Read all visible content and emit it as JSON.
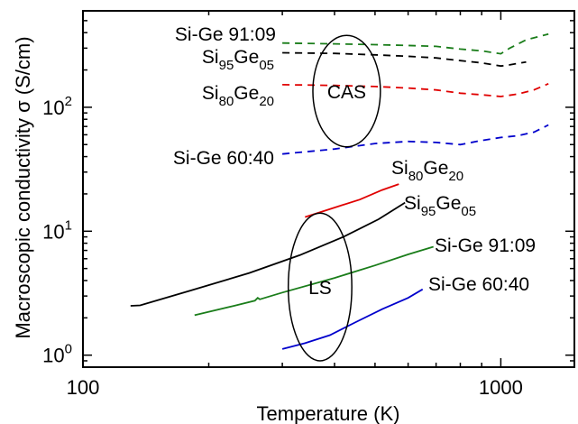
{
  "chart_data": {
    "type": "line",
    "title": "",
    "xlabel": "Temperature (K)",
    "ylabel": "Macroscopic conductivity σ (S/cm)",
    "xscale": "log",
    "yscale": "log",
    "xlim": [
      100,
      1500
    ],
    "ylim": [
      0.8,
      600
    ],
    "grid": false,
    "legend": "none (series labelled directly on the plot)",
    "x_ticks": [
      {
        "value": 100,
        "label": "100"
      },
      {
        "value": 1000,
        "label": "1000"
      }
    ],
    "y_ticks": [
      {
        "value": 1,
        "base": "10",
        "exp": "0"
      },
      {
        "value": 10,
        "base": "10",
        "exp": "1"
      },
      {
        "value": 100,
        "base": "10",
        "exp": "2"
      }
    ],
    "groups": [
      {
        "label": "CAS",
        "line_style": "dashed",
        "ellipse": {
          "center": [
            430,
            130
          ],
          "x_span": [
            355,
            515
          ],
          "y_span": [
            48,
            380
          ]
        }
      },
      {
        "label": "LS",
        "line_style": "solid",
        "ellipse": {
          "center": [
            370,
            3.5
          ],
          "x_span": [
            310,
            440
          ],
          "y_span": [
            0.9,
            14
          ]
        }
      }
    ],
    "series": [
      {
        "name": "Si-Ge 91:09",
        "group": "CAS",
        "color": "#1a7d1a",
        "dashed": true,
        "label_parts": [
          {
            "t": "Si-Ge 91:09"
          }
        ],
        "points": [
          [
            300,
            330
          ],
          [
            400,
            325
          ],
          [
            500,
            320
          ],
          [
            600,
            315
          ],
          [
            700,
            310
          ],
          [
            800,
            295
          ],
          [
            900,
            285
          ],
          [
            1000,
            270
          ],
          [
            1050,
            300
          ],
          [
            1150,
            350
          ],
          [
            1300,
            390
          ]
        ]
      },
      {
        "name": "Si95Ge05",
        "group": "CAS",
        "color": "#000000",
        "dashed": true,
        "label_parts": [
          {
            "t": "Si"
          },
          {
            "sub": "95"
          },
          {
            "t": "Ge"
          },
          {
            "sub": "05"
          }
        ],
        "points": [
          [
            300,
            275
          ],
          [
            400,
            272
          ],
          [
            500,
            265
          ],
          [
            600,
            258
          ],
          [
            700,
            250
          ],
          [
            800,
            238
          ],
          [
            900,
            228
          ],
          [
            1000,
            215
          ],
          [
            1050,
            220
          ],
          [
            1150,
            232
          ]
        ]
      },
      {
        "name": "Si80Ge20",
        "group": "CAS",
        "color": "#e00000",
        "dashed": true,
        "label_parts": [
          {
            "t": "Si"
          },
          {
            "sub": "80"
          },
          {
            "t": "Ge"
          },
          {
            "sub": "20"
          }
        ],
        "points": [
          [
            300,
            152
          ],
          [
            400,
            150
          ],
          [
            500,
            147
          ],
          [
            600,
            143
          ],
          [
            700,
            138
          ],
          [
            800,
            130
          ],
          [
            900,
            126
          ],
          [
            1000,
            122
          ],
          [
            1100,
            128
          ],
          [
            1200,
            138
          ],
          [
            1300,
            155
          ]
        ]
      },
      {
        "name": "Si-Ge 60:40",
        "group": "CAS",
        "color": "#0000cc",
        "dashed": true,
        "label_parts": [
          {
            "t": "Si-Ge 60:40"
          }
        ],
        "points": [
          [
            300,
            42
          ],
          [
            400,
            46
          ],
          [
            500,
            51
          ],
          [
            600,
            53
          ],
          [
            700,
            52
          ],
          [
            800,
            50
          ],
          [
            900,
            54
          ],
          [
            1000,
            57
          ],
          [
            1100,
            59
          ],
          [
            1200,
            63
          ],
          [
            1300,
            72
          ]
        ]
      },
      {
        "name": "Si80Ge20",
        "group": "LS",
        "color": "#e00000",
        "dashed": false,
        "label_parts": [
          {
            "t": "Si"
          },
          {
            "sub": "80"
          },
          {
            "t": "Ge"
          },
          {
            "sub": "20"
          }
        ],
        "points": [
          [
            340,
            13
          ],
          [
            400,
            15.5
          ],
          [
            460,
            18
          ],
          [
            520,
            21.5
          ],
          [
            570,
            24
          ]
        ]
      },
      {
        "name": "Si95Ge05",
        "group": "LS",
        "color": "#000000",
        "dashed": false,
        "label_parts": [
          {
            "t": "Si"
          },
          {
            "sub": "95"
          },
          {
            "t": "Ge"
          },
          {
            "sub": "05"
          }
        ],
        "points": [
          [
            130,
            2.5
          ],
          [
            137,
            2.52
          ],
          [
            180,
            3.3
          ],
          [
            250,
            4.6
          ],
          [
            330,
            6.4
          ],
          [
            420,
            9
          ],
          [
            510,
            12.5
          ],
          [
            590,
            17
          ]
        ]
      },
      {
        "name": "Si-Ge 91:09",
        "group": "LS",
        "color": "#1a7d1a",
        "dashed": false,
        "label_parts": [
          {
            "t": "Si-Ge 91:09"
          }
        ],
        "points": [
          [
            185,
            2.1
          ],
          [
            230,
            2.5
          ],
          [
            258,
            2.75
          ],
          [
            262,
            2.9
          ],
          [
            265,
            2.82
          ],
          [
            300,
            3.2
          ],
          [
            400,
            4.2
          ],
          [
            500,
            5.3
          ],
          [
            600,
            6.5
          ],
          [
            690,
            7.5
          ]
        ]
      },
      {
        "name": "Si-Ge 60:40",
        "group": "LS",
        "color": "#0000cc",
        "dashed": false,
        "label_parts": [
          {
            "t": "Si-Ge 60:40"
          }
        ],
        "points": [
          [
            300,
            1.12
          ],
          [
            340,
            1.25
          ],
          [
            390,
            1.45
          ],
          [
            450,
            1.85
          ],
          [
            520,
            2.35
          ],
          [
            600,
            2.9
          ],
          [
            650,
            3.4
          ]
        ]
      }
    ]
  }
}
